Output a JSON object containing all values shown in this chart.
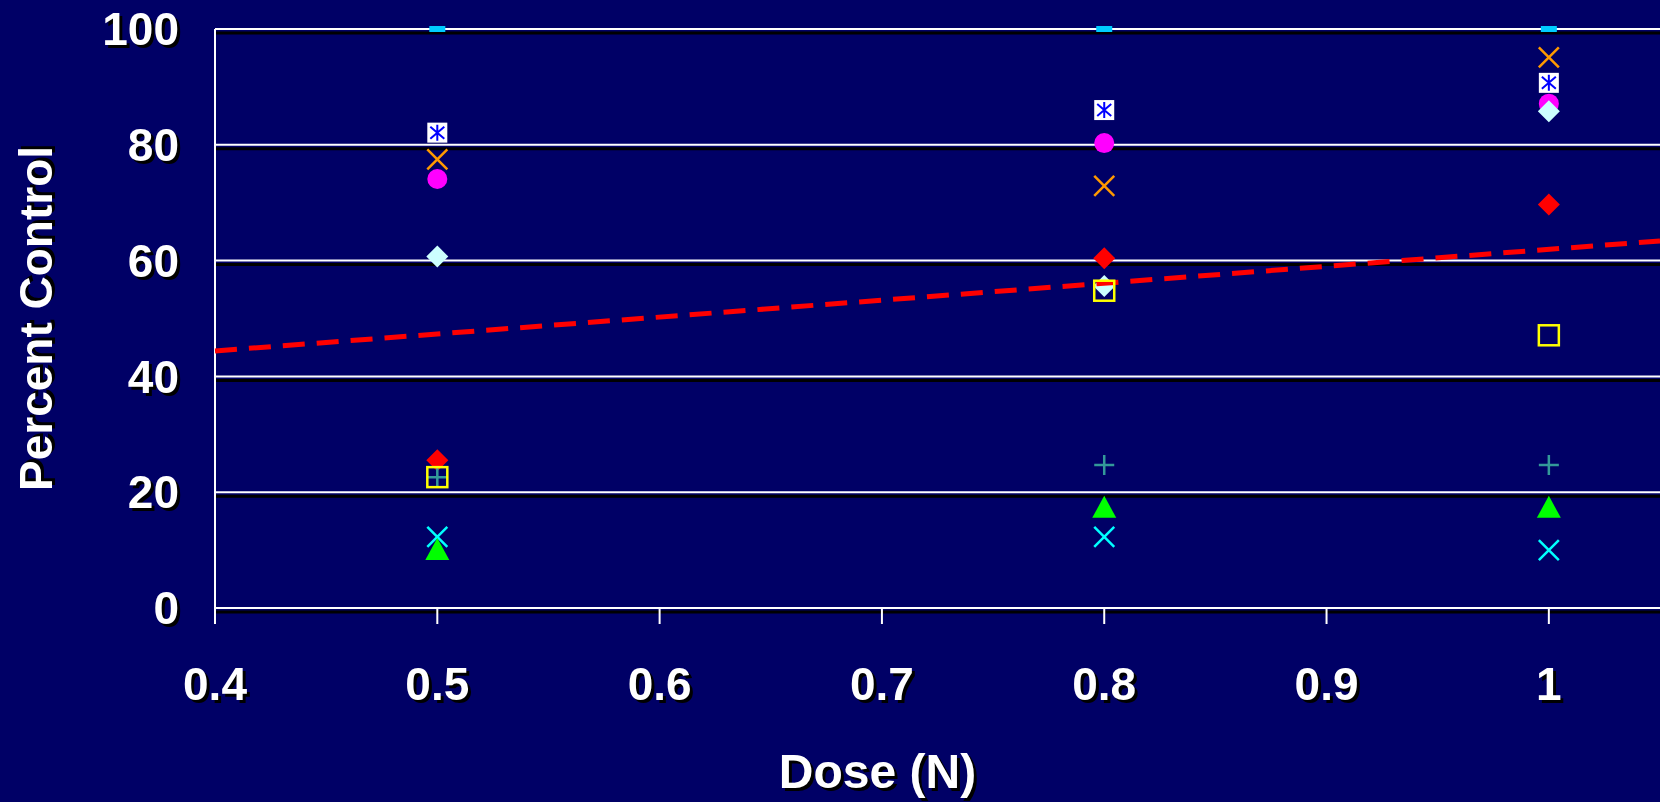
{
  "chart_data": {
    "type": "scatter",
    "xlabel": "Dose (N)",
    "ylabel": "Percent Control",
    "xlim": [
      0.4,
      1.05
    ],
    "xticks": [
      0.4,
      0.5,
      0.6,
      0.7,
      0.8,
      0.9,
      1
    ],
    "ylim": [
      0,
      100
    ],
    "yticks": [
      0,
      20,
      40,
      60,
      80,
      100
    ],
    "grid": "y",
    "x": [
      0.5,
      0.8,
      1
    ],
    "series": [
      {
        "color": "#00ccff",
        "marker": "square",
        "values": [
          100,
          100,
          100
        ]
      },
      {
        "color": "#0000ff",
        "marker": "cross",
        "values": [
          82.1,
          86,
          90.7
        ]
      },
      {
        "color": "#ff9900",
        "marker": "cross",
        "values": [
          77.5,
          72.9,
          95.1
        ]
      },
      {
        "color": "#ff00ff",
        "marker": "circle",
        "values": [
          74.1,
          80.3,
          87.1
        ]
      },
      {
        "color": "#ccffff",
        "marker": "diamond",
        "values": [
          60.7,
          55.6,
          85.8
        ]
      },
      {
        "color": "#ff0000",
        "marker": "diamond",
        "values": [
          25.5,
          60.4,
          69.7
        ]
      },
      {
        "color": "#ffff00",
        "marker": "square",
        "values": [
          22.6,
          54.8,
          47.1
        ]
      },
      {
        "color": "#339999",
        "marker": "cross",
        "values": [
          22.6,
          24.7,
          24.7
        ]
      },
      {
        "color": "#00ffff",
        "marker": "cross",
        "values": [
          12.3,
          12.3,
          10
        ]
      },
      {
        "color": "#00ff00",
        "marker": "triangle",
        "values": [
          10,
          17.3,
          17.3
        ]
      },
      {
        "type": "line",
        "color": "#ff0000",
        "line_style": "dashed",
        "marker": "none",
        "x": [
          0.4,
          1.05
        ],
        "values": [
          44.4,
          63.4
        ]
      }
    ]
  }
}
